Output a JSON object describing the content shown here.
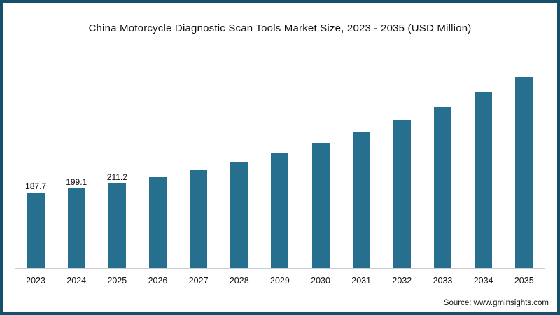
{
  "title": "China Motorcycle Diagnostic Scan Tools Market Size, 2023 - 2035 (USD Million)",
  "source": "Source: www.gminsights.com",
  "colors": {
    "bar": "#266f8e",
    "border": "#14506a",
    "axis": "#c9ccd1"
  },
  "chart_data": {
    "type": "bar",
    "title": "China Motorcycle Diagnostic Scan Tools Market Size, 2023 - 2035 (USD Million)",
    "categories": [
      "2023",
      "2024",
      "2025",
      "2026",
      "2027",
      "2028",
      "2029",
      "2030",
      "2031",
      "2032",
      "2033",
      "2034",
      "2035"
    ],
    "values": [
      187.7,
      199.1,
      211.2,
      225,
      243,
      263,
      285,
      310,
      337,
      366,
      399,
      434,
      473
    ],
    "data_labels": [
      "187.7",
      "199.1",
      "211.2",
      "",
      "",
      "",
      "",
      "",
      "",
      "",
      "",
      "",
      ""
    ],
    "xlabel": "",
    "ylabel": "",
    "ylim": [
      0,
      500
    ],
    "grid": false,
    "legend": "none",
    "unit": "USD Million"
  }
}
